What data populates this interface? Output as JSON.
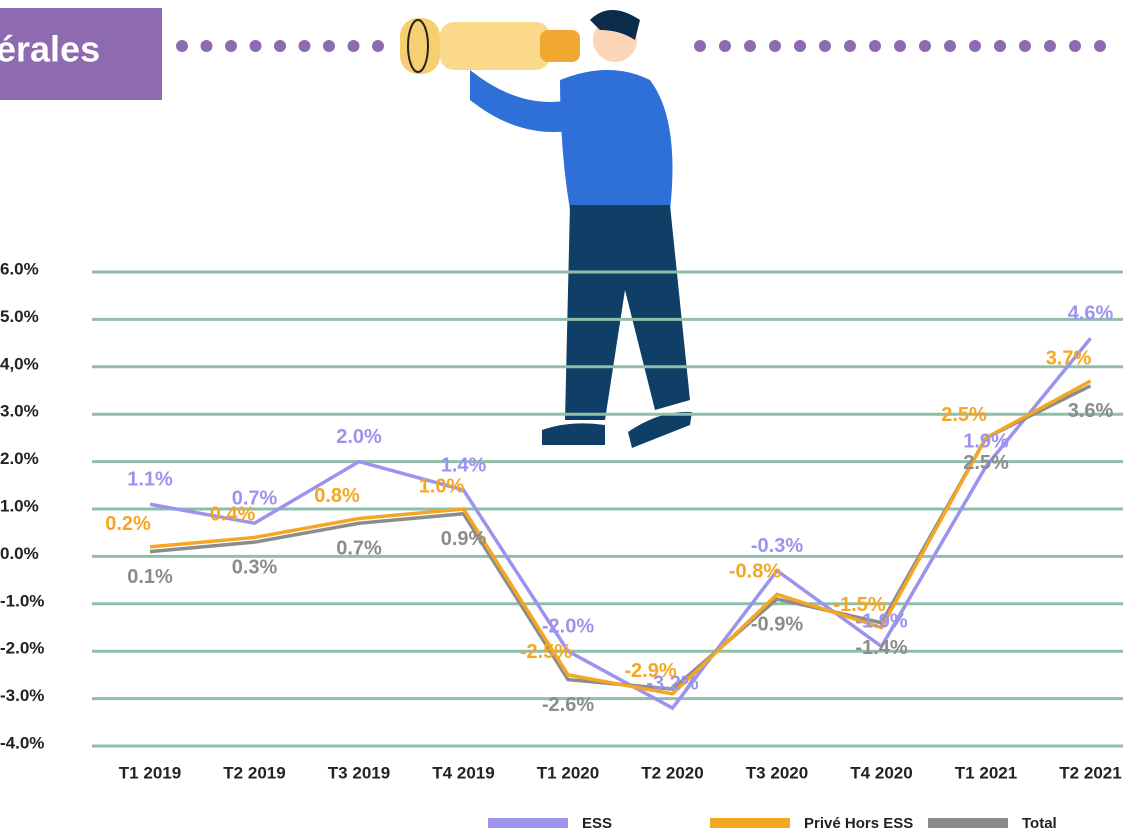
{
  "header": {
    "title": "érales"
  },
  "chart_data": {
    "type": "line",
    "categories": [
      "T1 2019",
      "T2 2019",
      "T3 2019",
      "T4 2019",
      "T1 2020",
      "T2 2020",
      "T3 2020",
      "T4 2020",
      "T1 2021",
      "T2 2021"
    ],
    "series": [
      {
        "name": "ESS",
        "color": "#9b94ee",
        "values": [
          1.1,
          0.7,
          2.0,
          1.4,
          -2.0,
          -3.2,
          -0.3,
          -1.9,
          1.9,
          4.6
        ],
        "value_labels": [
          "1.1%",
          "0.7%",
          "2.0%",
          "1.4%",
          "-2.0%",
          "-3.2%",
          "-0.3%",
          "-1.9%",
          "1.9%",
          "4.6%"
        ]
      },
      {
        "name": "Privé Hors ESS",
        "color": "#f5a623",
        "values": [
          0.2,
          0.4,
          0.8,
          1.0,
          -2.5,
          -2.9,
          -0.8,
          -1.5,
          2.5,
          3.7
        ],
        "value_labels": [
          "0.2%",
          "0.4%",
          "0.8%",
          "1.0%",
          "-2.5%",
          "-2.9%",
          "-0.8%",
          "-1.5%",
          "2.5%",
          "3.7%"
        ]
      },
      {
        "name": "Total",
        "color": "#8c8c8c",
        "values": [
          0.1,
          0.3,
          0.7,
          0.9,
          -2.6,
          -2.8,
          -0.9,
          -1.4,
          2.5,
          3.6
        ],
        "value_labels": [
          "0.1%",
          "0.3%",
          "0.7%",
          "0.9%",
          "-2.6%",
          null,
          "-0.9%",
          "-1.4%",
          "2.5%",
          "3.6%"
        ]
      }
    ],
    "ylim": [
      -4,
      6
    ],
    "yticks": [
      {
        "value": -4,
        "label": "-4.0%"
      },
      {
        "value": -3,
        "label": "-3.0%"
      },
      {
        "value": -2,
        "label": "-2.0%"
      },
      {
        "value": -1,
        "label": "-1.0%"
      },
      {
        "value": 0,
        "label": "0.0%"
      },
      {
        "value": 1,
        "label": "1.0%"
      },
      {
        "value": 2,
        "label": "2.0%"
      },
      {
        "value": 3,
        "label": "3.0%"
      },
      {
        "value": 4,
        "label": "4,0%"
      },
      {
        "value": 5,
        "label": "5.0%"
      },
      {
        "value": 6,
        "label": "6.0%"
      }
    ],
    "grid": true,
    "legend": "bottom"
  }
}
